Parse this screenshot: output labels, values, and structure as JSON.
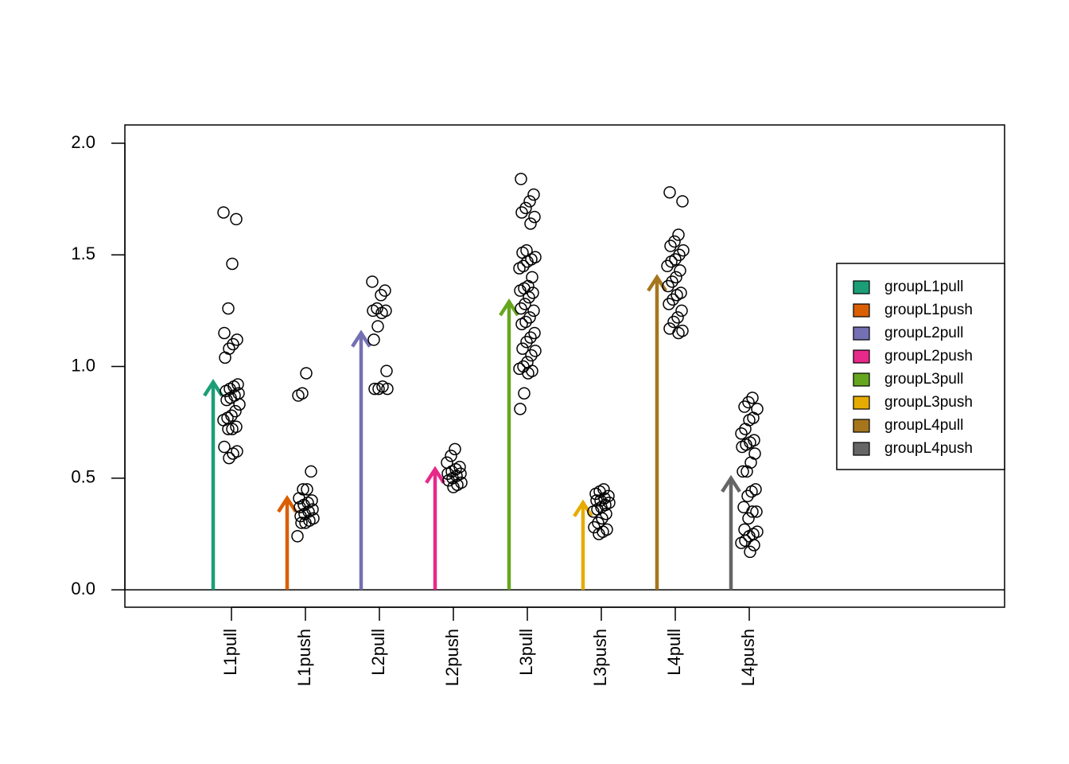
{
  "chart_data": {
    "type": "strip",
    "categories": [
      "L1pull",
      "L1push",
      "L2pull",
      "L2push",
      "L3pull",
      "L3push",
      "L4pull",
      "L4push"
    ],
    "ylim": [
      -0.078,
      2.082
    ],
    "yticks": [
      {
        "value": 0,
        "label": "0.0"
      },
      0.5,
      {
        "value": 1,
        "label": "1.0"
      },
      1.5,
      {
        "value": 2,
        "label": "2.0"
      }
    ],
    "legend": "right",
    "series": [
      {
        "name": "groupL1pull",
        "color": "#1b9e77",
        "value": 0.93,
        "points": [
          1.69,
          1.66,
          1.46,
          1.26,
          1.15,
          1.12,
          1.1,
          1.08,
          1.04,
          0.92,
          0.91,
          0.9,
          0.89,
          0.88,
          0.87,
          0.86,
          0.85,
          0.83,
          0.8,
          0.78,
          0.77,
          0.76,
          0.73,
          0.72,
          0.72,
          0.64,
          0.62,
          0.61,
          0.59
        ]
      },
      {
        "name": "groupL1push",
        "color": "#d95f02",
        "value": 0.41,
        "points": [
          0.97,
          0.88,
          0.87,
          0.53,
          0.45,
          0.45,
          0.41,
          0.4,
          0.39,
          0.38,
          0.37,
          0.36,
          0.35,
          0.34,
          0.33,
          0.32,
          0.31,
          0.3,
          0.3,
          0.24
        ]
      },
      {
        "name": "groupL2pull",
        "color": "#7570b3",
        "value": 1.15,
        "points": [
          1.38,
          1.34,
          1.32,
          1.26,
          1.25,
          1.25,
          1.24,
          1.18,
          1.12,
          0.98,
          0.91,
          0.9,
          0.9,
          0.9
        ]
      },
      {
        "name": "groupL2push",
        "color": "#e7298a",
        "value": 0.54,
        "points": [
          0.63,
          0.6,
          0.57,
          0.55,
          0.54,
          0.53,
          0.52,
          0.52,
          0.51,
          0.5,
          0.49,
          0.48,
          0.47,
          0.46
        ]
      },
      {
        "name": "groupL3pull",
        "color": "#66a61e",
        "value": 1.29,
        "points": [
          1.84,
          1.77,
          1.74,
          1.71,
          1.69,
          1.67,
          1.64,
          1.52,
          1.51,
          1.49,
          1.48,
          1.47,
          1.45,
          1.44,
          1.4,
          1.36,
          1.35,
          1.34,
          1.33,
          1.31,
          1.28,
          1.26,
          1.25,
          1.22,
          1.2,
          1.19,
          1.15,
          1.13,
          1.11,
          1.08,
          1.07,
          1.05,
          1.02,
          1.0,
          0.99,
          0.98,
          0.97,
          0.88,
          0.81
        ]
      },
      {
        "name": "groupL3push",
        "color": "#e6ab02",
        "value": 0.39,
        "points": [
          0.45,
          0.44,
          0.43,
          0.42,
          0.41,
          0.4,
          0.4,
          0.39,
          0.38,
          0.37,
          0.36,
          0.35,
          0.34,
          0.32,
          0.3,
          0.28,
          0.27,
          0.26,
          0.25
        ]
      },
      {
        "name": "groupL4pull",
        "color": "#a6761d",
        "value": 1.4,
        "points": [
          1.78,
          1.74,
          1.59,
          1.56,
          1.54,
          1.52,
          1.5,
          1.48,
          1.47,
          1.45,
          1.43,
          1.4,
          1.38,
          1.36,
          1.33,
          1.32,
          1.3,
          1.28,
          1.25,
          1.22,
          1.2,
          1.17,
          1.16,
          1.15
        ]
      },
      {
        "name": "groupL4push",
        "color": "#666666",
        "value": 0.5,
        "points": [
          0.86,
          0.84,
          0.82,
          0.81,
          0.77,
          0.76,
          0.72,
          0.7,
          0.67,
          0.66,
          0.65,
          0.64,
          0.61,
          0.57,
          0.53,
          0.53,
          0.45,
          0.44,
          0.42,
          0.37,
          0.35,
          0.35,
          0.32,
          0.27,
          0.26,
          0.25,
          0.24,
          0.22,
          0.21,
          0.2,
          0.17
        ]
      }
    ]
  }
}
